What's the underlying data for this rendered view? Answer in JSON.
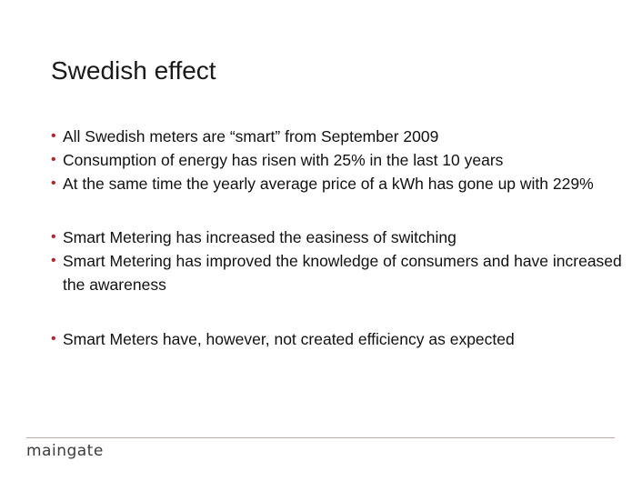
{
  "slide": {
    "title": "Swedish effect",
    "bullet_color": "#b3262d",
    "bullets": [
      {
        "text": "All Swedish meters are “smart” from September 2009"
      },
      {
        "text": "Consumption of energy has risen with 25% in the last 10 years"
      },
      {
        "text": "At the same time the yearly average price of a kWh has gone up with 229%"
      },
      {
        "text": "Smart Metering has increased the easiness of switching"
      },
      {
        "text": "Smart Metering has improved the knowledge of consumers and have increased the awareness"
      },
      {
        "text": "Smart Meters have, however, not created efficiency as expected"
      }
    ]
  },
  "footer": {
    "logo_text": "maingate",
    "rule_color": "#c9a6a8"
  }
}
